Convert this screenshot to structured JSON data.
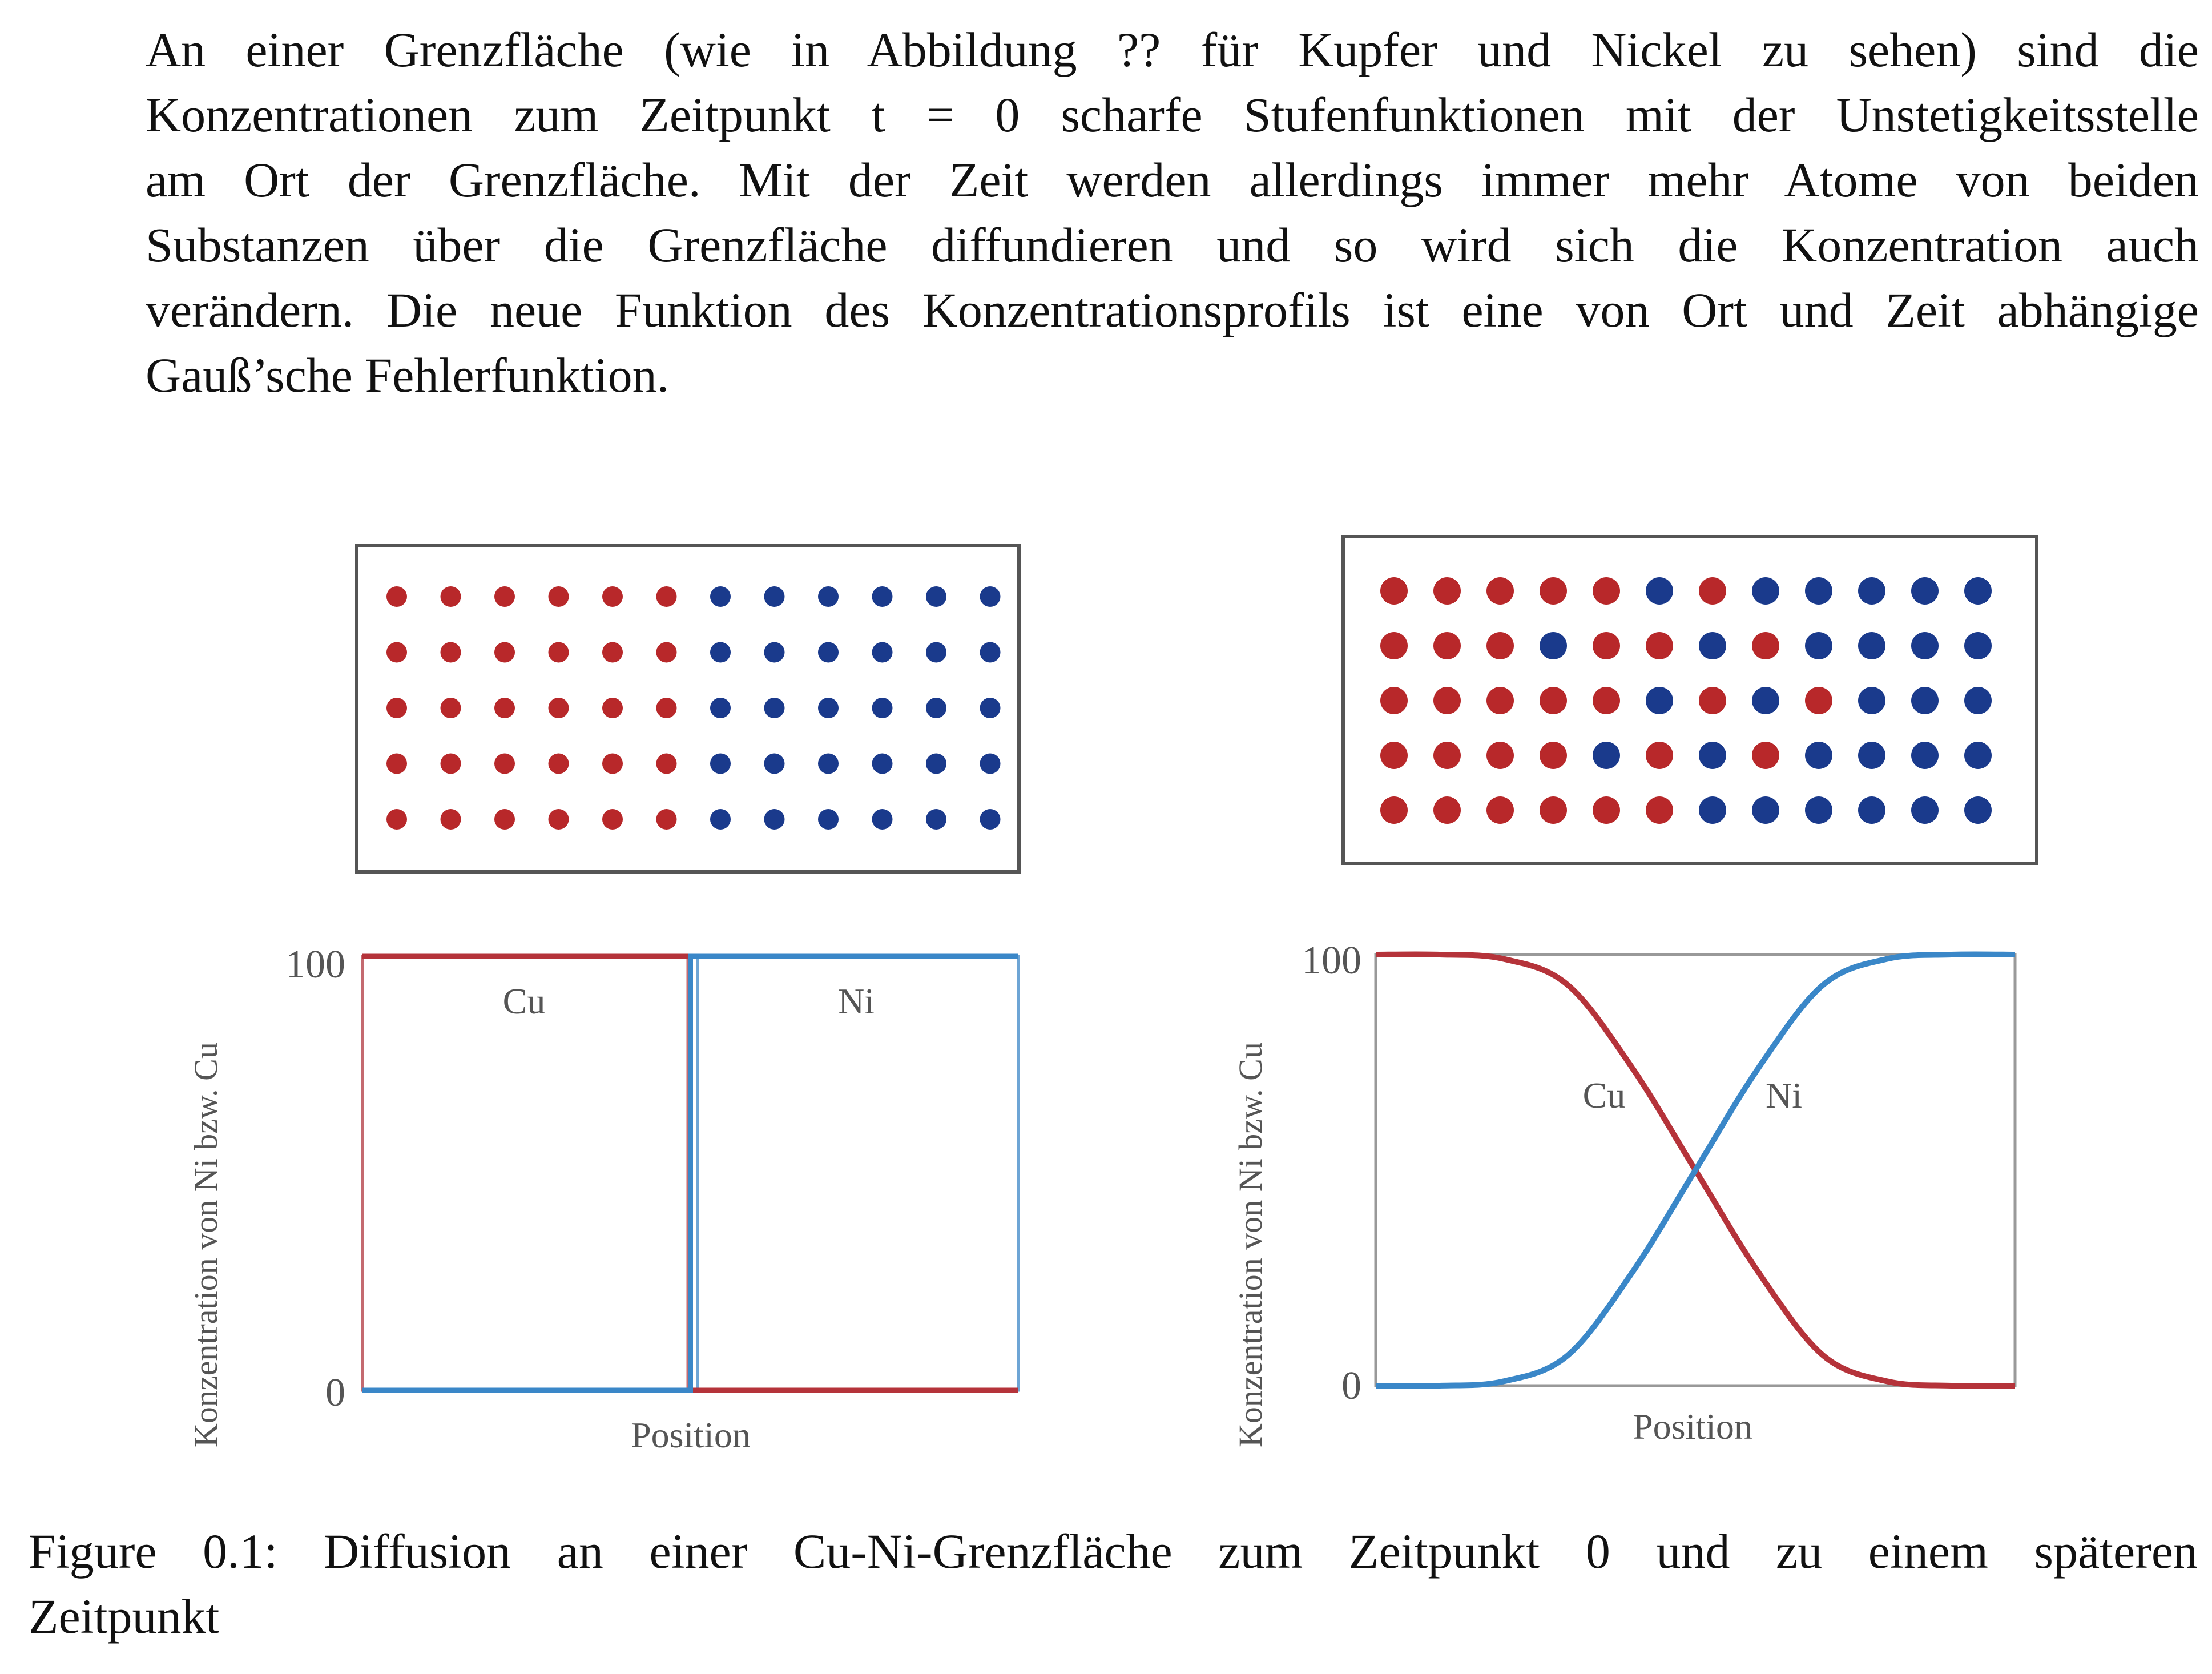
{
  "paragraph_lines": [
    "An einer Grenzfläche (wie in Abbildung ?? für Kupfer und Nickel zu sehen) sind die",
    "Konzentrationen zum Zeitpunkt t = 0 scharfe Stufenfunktionen mit der Unstetigkeitsstelle",
    "am Ort der Grenzfläche. Mit der Zeit werden allerdings immer mehr Atome von beiden",
    "Substanzen über die Grenzfläche diffundieren und so wird sich die Konzentration auch",
    "verändern. Die neue Funktion des Konzentrationsprofils ist eine von Ort und Zeit abhängige",
    "Gauß’sche Fehlerfunktion."
  ],
  "caption_lines": [
    "Figure 0.1: Diffusion an einer Cu-Ni-Grenzfläche zum Zeitpunkt 0 und zu einem späteren",
    "Zeitpunkt"
  ],
  "colors": {
    "cu": "#b8282a",
    "ni": "#1a3a8c",
    "cu_line": "#b5333a",
    "ni_line": "#3a87c8"
  },
  "atom_grids": [
    {
      "rows": [
        "CCCCCCNNNNNN",
        "CCCCCCNNNNNN",
        "CCCCCCNNNNNN",
        "CCCCCCNNNNNN",
        "CCCCCCNNNNNN"
      ]
    },
    {
      "rows": [
        "CCCCCNCNNNNN",
        "CCCNCCNCNNNN",
        "CCCCCNCNCNNN",
        "CCCCNCNCNNNN",
        "CCCCCCNNNNNN"
      ]
    }
  ],
  "chart_data": [
    {
      "type": "line",
      "title": "",
      "xlabel": "Position",
      "ylabel": "Konzentration von Ni bzw. Cu",
      "yticks": [
        "0",
        "100"
      ],
      "ylim": [
        0,
        100
      ],
      "xlim": [
        0,
        1
      ],
      "series": [
        {
          "name": "Cu",
          "x": [
            0,
            0.5,
            0.5,
            1
          ],
          "values": [
            100,
            100,
            0,
            0
          ]
        },
        {
          "name": "Ni",
          "x": [
            0,
            0.5,
            0.5,
            1
          ],
          "values": [
            0,
            0,
            100,
            100
          ]
        }
      ]
    },
    {
      "type": "line",
      "title": "",
      "xlabel": "Position",
      "ylabel": "Konzentration von Ni bzw. Cu",
      "yticks": [
        "0",
        "100"
      ],
      "ylim": [
        0,
        100
      ],
      "xlim": [
        0,
        1
      ],
      "series": [
        {
          "name": "Cu",
          "x": [
            0,
            0.1,
            0.2,
            0.3,
            0.4,
            0.5,
            0.6,
            0.7,
            0.8,
            0.9,
            1
          ],
          "values": [
            100,
            100,
            99,
            93,
            74,
            50,
            26,
            7,
            1,
            0,
            0
          ]
        },
        {
          "name": "Ni",
          "x": [
            0,
            0.1,
            0.2,
            0.3,
            0.4,
            0.5,
            0.6,
            0.7,
            0.8,
            0.9,
            1
          ],
          "values": [
            0,
            0,
            1,
            7,
            26,
            50,
            74,
            93,
            99,
            100,
            100
          ]
        }
      ]
    }
  ]
}
